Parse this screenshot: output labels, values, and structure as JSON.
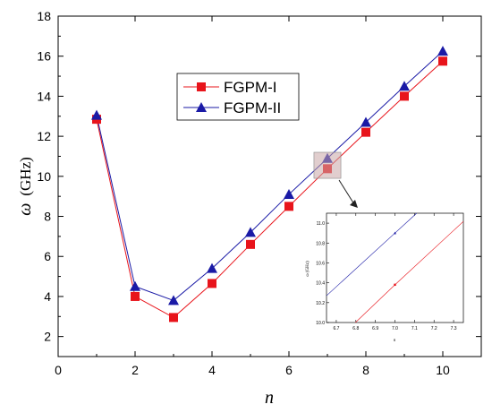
{
  "chart_data": {
    "type": "line",
    "x": [
      1,
      2,
      3,
      4,
      5,
      6,
      7,
      8,
      9,
      10
    ],
    "xlabel": "n",
    "ylabel_symbol": "ω",
    "ylabel_unit": "(GHz)",
    "xlim": [
      0,
      11
    ],
    "ylim": [
      1,
      18
    ],
    "xticks": [
      "0",
      "2",
      "4",
      "6",
      "8",
      "10"
    ],
    "yticks": [
      "2",
      "4",
      "6",
      "8",
      "10",
      "12",
      "14",
      "16",
      "18"
    ],
    "series": [
      {
        "name": "FGPM-I",
        "marker": "square",
        "color": "#e8141b",
        "values": [
          12.85,
          4.0,
          2.95,
          4.65,
          6.6,
          8.5,
          10.38,
          12.2,
          14.0,
          15.75
        ]
      },
      {
        "name": "FGPM-II",
        "marker": "triangle",
        "color": "#1a1aa6",
        "values": [
          13.05,
          4.5,
          3.8,
          5.4,
          7.2,
          9.1,
          10.9,
          12.7,
          14.5,
          16.25
        ]
      }
    ],
    "legend": "upper-left-center",
    "inset": {
      "xlim": [
        6.65,
        7.35
      ],
      "ylim": [
        10.0,
        11.1
      ],
      "xticks": [
        "6.7",
        "6.8",
        "6.9",
        "7.0",
        "7.1",
        "7.2",
        "7.3"
      ],
      "yticks": [
        "10.0",
        "10.2",
        "10.4",
        "10.6",
        "10.8",
        "11.0"
      ],
      "xlabel": "n",
      "ylabel": "ω (GHz)",
      "highlight_x": 7
    }
  }
}
